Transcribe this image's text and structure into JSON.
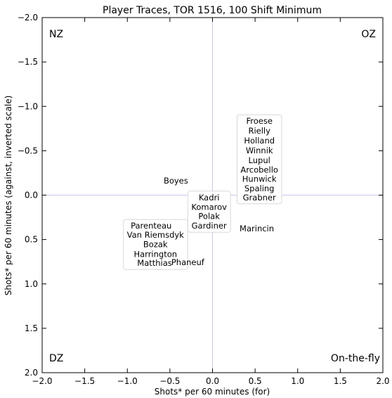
{
  "chart_data": {
    "type": "scatter",
    "title": "Player Traces, TOR 1516, 100 Shift Minimum",
    "xlabel": "Shots* per 60 minutes (for)",
    "ylabel": "Shots* per 60 minutes (against, inverted scale)",
    "xlim": [
      -2.0,
      2.0
    ],
    "ylim": [
      -2.0,
      2.0
    ],
    "y_inverted": true,
    "grid": false,
    "x_ticks": [
      "−2.0",
      "−1.5",
      "−1.0",
      "−0.5",
      "0.0",
      "0.5",
      "1.0",
      "1.5",
      "2.0"
    ],
    "y_ticks": [
      "−2.0",
      "−1.5",
      "−1.0",
      "−0.5",
      "0.0",
      "0.5",
      "1.0",
      "1.5",
      "2.0"
    ],
    "reference_lines": {
      "x": 0.0,
      "y": 0.0,
      "color": "#c8c8ee"
    },
    "quadrant_labels": [
      {
        "text": "NZ",
        "corner": "top-left"
      },
      {
        "text": "OZ",
        "corner": "top-right"
      },
      {
        "text": "DZ",
        "corner": "bottom-left"
      },
      {
        "text": "On-the-fly",
        "corner": "bottom-right"
      }
    ],
    "players": [
      {
        "name": "Froese",
        "x": 0.55,
        "y": -0.83
      },
      {
        "name": "Rielly",
        "x": 0.55,
        "y": -0.72
      },
      {
        "name": "Holland",
        "x": 0.55,
        "y": -0.61
      },
      {
        "name": "Winnik",
        "x": 0.55,
        "y": -0.5
      },
      {
        "name": "Lupul",
        "x": 0.55,
        "y": -0.39
      },
      {
        "name": "Arcobello",
        "x": 0.55,
        "y": -0.28
      },
      {
        "name": "Hunwick",
        "x": 0.55,
        "y": -0.18
      },
      {
        "name": "Spaling",
        "x": 0.55,
        "y": -0.07
      },
      {
        "name": "Grabner",
        "x": 0.55,
        "y": 0.03
      },
      {
        "name": "Boyes",
        "x": -0.43,
        "y": -0.16
      },
      {
        "name": "Kadri",
        "x": -0.04,
        "y": 0.03
      },
      {
        "name": "Komarov",
        "x": -0.04,
        "y": 0.14
      },
      {
        "name": "Polak",
        "x": -0.04,
        "y": 0.24
      },
      {
        "name": "Gardiner",
        "x": -0.04,
        "y": 0.35
      },
      {
        "name": "Marincin",
        "x": 0.52,
        "y": 0.38
      },
      {
        "name": "Parenteau",
        "x": -0.72,
        "y": 0.35
      },
      {
        "name": "Van Riemsdyk",
        "x": -0.67,
        "y": 0.45
      },
      {
        "name": "Bozak",
        "x": -0.67,
        "y": 0.56
      },
      {
        "name": "Harrington",
        "x": -0.67,
        "y": 0.67
      },
      {
        "name": "Matthias",
        "x": -0.68,
        "y": 0.77
      },
      {
        "name": "Phaneuf",
        "x": -0.29,
        "y": 0.76
      }
    ]
  }
}
